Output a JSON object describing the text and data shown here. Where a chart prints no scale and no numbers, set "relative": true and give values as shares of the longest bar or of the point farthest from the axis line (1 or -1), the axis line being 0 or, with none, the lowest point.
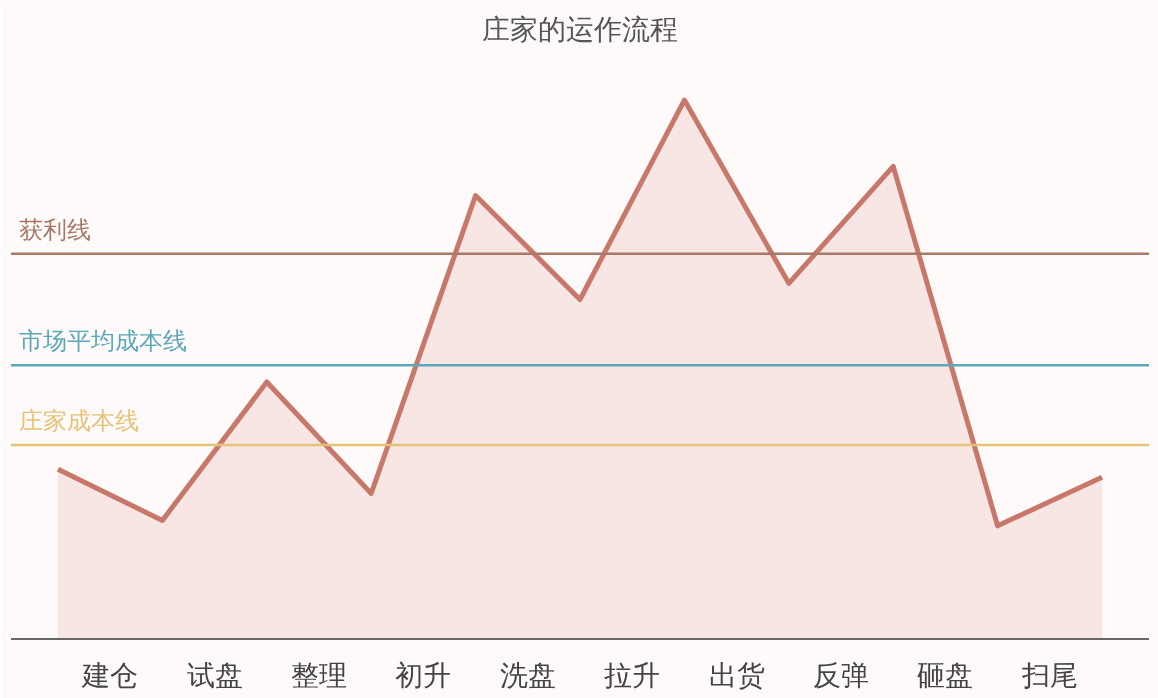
{
  "chart_data": {
    "type": "area",
    "title": "庄家的运作流程",
    "relative": true,
    "categories": [
      null,
      "建仓",
      null,
      "试盘",
      null,
      "整理",
      null,
      "初升",
      null,
      "洗盘",
      null,
      "拉升",
      null,
      "出货",
      null,
      "反弹",
      null,
      "砸盘",
      null,
      "扫尾",
      null
    ],
    "series": [
      {
        "color": "#c8786a",
        "values": [
          0.315,
          null,
          0.22,
          null,
          0.477,
          null,
          0.27,
          null,
          0.823,
          null,
          0.63,
          null,
          1,
          null,
          0.66,
          null,
          0.877,
          null,
          0.21,
          null,
          0.3
        ]
      }
    ],
    "ref_lines": [
      {
        "axis": "y",
        "value": 0.715,
        "label": "获利线",
        "color": "#a87868"
      },
      {
        "axis": "y",
        "value": 0.508,
        "label": "市场平均成本线",
        "color": "#5aa8b8"
      },
      {
        "axis": "y",
        "value": 0.36,
        "label": "庄家成本线",
        "color": "#e6c277"
      }
    ],
    "grid": false,
    "tick_labels": "x"
  }
}
